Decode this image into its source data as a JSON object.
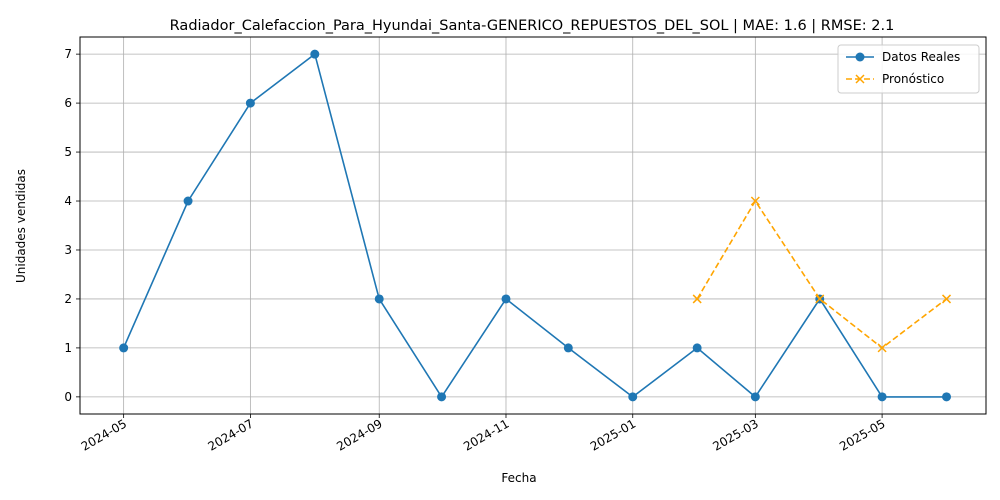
{
  "chart_data": {
    "type": "line",
    "title": "Radiador_Calefaccion_Para_Hyundai_Santa-GENERICO_REPUESTOS_DEL_SOL | MAE: 1.6 | RMSE: 2.1",
    "xlabel": "Fecha",
    "ylabel": "Unidades vendidas",
    "ylim": [
      -0.35,
      7.35
    ],
    "xlim": [
      "2024-04-10",
      "2025-06-20"
    ],
    "x_ticks": [
      "2024-05",
      "2024-07",
      "2024-09",
      "2024-11",
      "2025-01",
      "2025-03",
      "2025-05"
    ],
    "y_ticks": [
      0,
      1,
      2,
      3,
      4,
      5,
      6,
      7
    ],
    "grid": true,
    "legend_position": "top-right",
    "series": [
      {
        "name": "Datos Reales",
        "color": "#1f77b4",
        "style": "solid",
        "marker": "circle",
        "x": [
          "2024-05-01",
          "2024-06-01",
          "2024-07-01",
          "2024-08-01",
          "2024-09-01",
          "2024-10-01",
          "2024-11-01",
          "2024-12-01",
          "2025-01-01",
          "2025-02-01",
          "2025-03-01",
          "2025-04-01",
          "2025-05-01",
          "2025-06-01"
        ],
        "values": [
          1,
          4,
          6,
          7,
          2,
          0,
          2,
          1,
          0,
          1,
          0,
          2,
          0,
          0
        ]
      },
      {
        "name": "Pronóstico",
        "color": "#ffa500",
        "style": "dashed",
        "marker": "x",
        "x": [
          "2025-02-01",
          "2025-03-01",
          "2025-04-01",
          "2025-05-01",
          "2025-06-01"
        ],
        "values": [
          2,
          4,
          2,
          1,
          2
        ]
      }
    ]
  }
}
